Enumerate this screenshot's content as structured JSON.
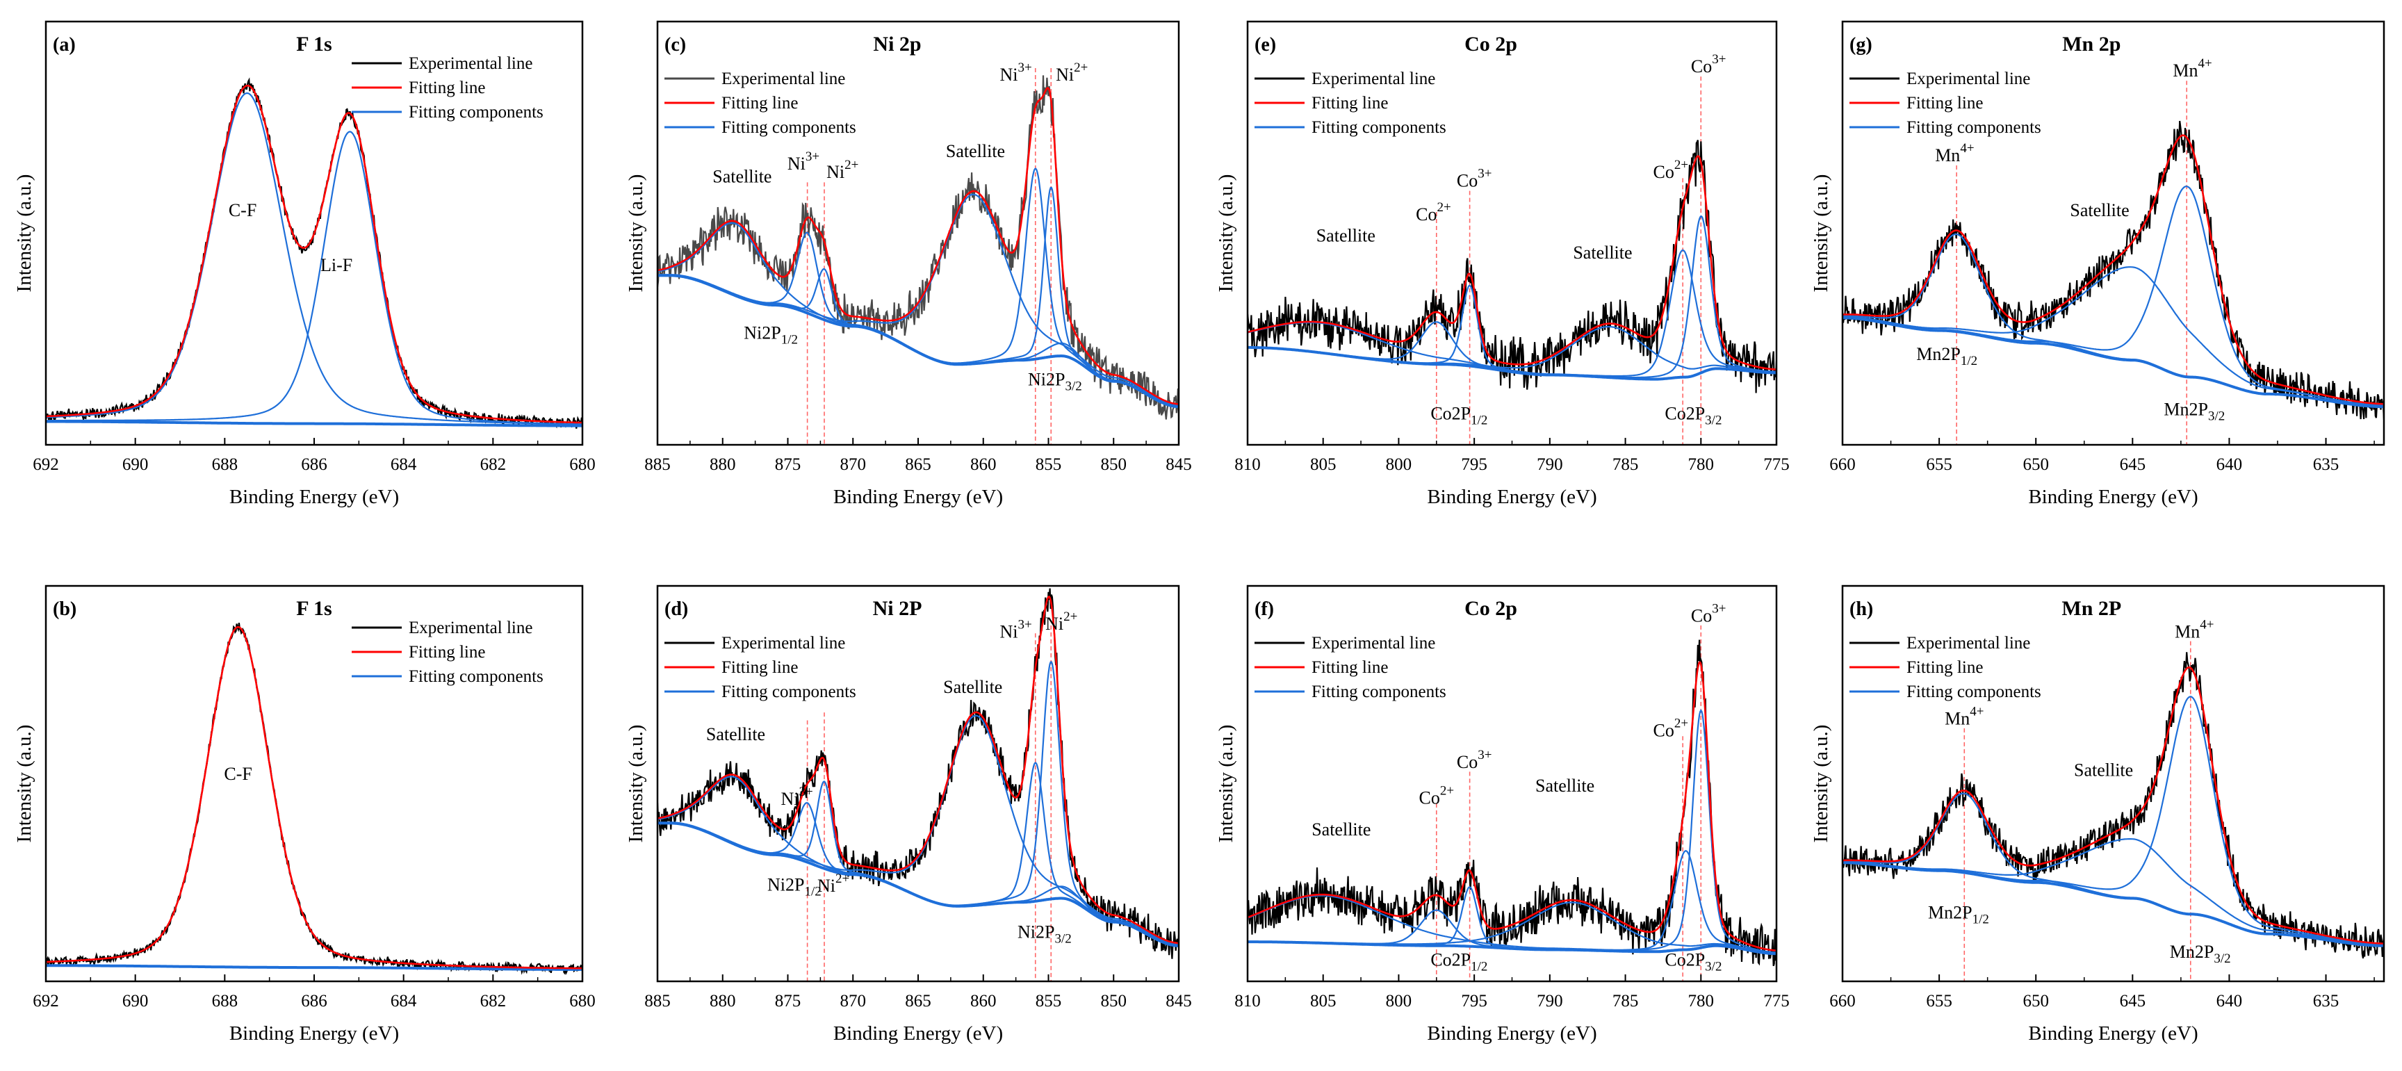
{
  "legend_labels": [
    "Experimental line",
    "Fitting line",
    "Fitting components"
  ],
  "colors": {
    "experimental": "#000000",
    "experimental_gray": "#4a4a4a",
    "fitting": "#ff0000",
    "components": "#1e6fd9",
    "guide": "#ff6666"
  },
  "chart_data": [
    {
      "id": "a",
      "type": "line",
      "panel_label": "(a)",
      "title": "F 1s",
      "xlabel": "Binding Energy (eV)",
      "ylabel": "Intensity (a.u.)",
      "xlim": [
        692,
        680
      ],
      "xticks": [
        692,
        690,
        688,
        686,
        684,
        682,
        680
      ],
      "legend": "top-right",
      "exp_color": "experimental",
      "noise": 0.012,
      "seed": 3,
      "background": [
        [
          692,
          0.055
        ],
        [
          686,
          0.05
        ],
        [
          680,
          0.045
        ]
      ],
      "components": [
        {
          "name": "C-F",
          "center": 687.5,
          "height": 0.78,
          "fwhm": 1.9
        },
        {
          "name": "Li-F",
          "center": 685.2,
          "height": 0.69,
          "fwhm": 1.4
        }
      ],
      "guides": [],
      "annotations": [
        {
          "text": "C-F",
          "x": 687.6,
          "y": 0.55
        },
        {
          "text": "Li-F",
          "x": 685.5,
          "y": 0.42
        }
      ]
    },
    {
      "id": "b",
      "type": "line",
      "panel_label": "(b)",
      "title": "F 1s",
      "xlabel": "Binding Energy (eV)",
      "ylabel": "Intensity (a.u.)",
      "xlim": [
        692,
        680
      ],
      "xticks": [
        692,
        690,
        688,
        686,
        684,
        682,
        680
      ],
      "legend": "top-right",
      "exp_color": "experimental",
      "noise": 0.01,
      "seed": 5,
      "background": [
        [
          692,
          0.04
        ],
        [
          686,
          0.035
        ],
        [
          680,
          0.03
        ]
      ],
      "components": [
        {
          "name": "C-F",
          "center": 687.7,
          "height": 0.86,
          "fwhm": 1.65
        }
      ],
      "guides": [],
      "annotations": [
        {
          "text": "C-F",
          "x": 687.7,
          "y": 0.52
        }
      ]
    },
    {
      "id": "c",
      "type": "line",
      "panel_label": "(c)",
      "title": "Ni 2p",
      "xlabel": "Binding Energy (eV)",
      "ylabel": "Intensity (a.u.)",
      "xlim": [
        885,
        845
      ],
      "xticks": [
        885,
        880,
        875,
        870,
        865,
        860,
        855,
        850,
        845
      ],
      "legend": "upper-left",
      "exp_color": "experimental_gray",
      "noise": 0.04,
      "seed": 7,
      "background": [
        [
          884,
          0.4
        ],
        [
          876,
          0.33
        ],
        [
          870,
          0.28
        ],
        [
          862,
          0.19
        ],
        [
          857,
          0.2
        ],
        [
          854,
          0.21
        ],
        [
          850,
          0.15
        ],
        [
          845,
          0.09
        ]
      ],
      "components": [
        {
          "name": "Satellite",
          "center": 879,
          "height": 0.17,
          "fwhm": 5
        },
        {
          "name": "Ni3+",
          "center": 873.5,
          "height": 0.19,
          "fwhm": 1.8
        },
        {
          "name": "Ni2+",
          "center": 872.2,
          "height": 0.12,
          "fwhm": 1.4
        },
        {
          "name": "Satellite",
          "center": 860.8,
          "height": 0.4,
          "fwhm": 6
        },
        {
          "name": "Ni3+",
          "center": 856,
          "height": 0.45,
          "fwhm": 1.8
        },
        {
          "name": "Ni2+",
          "center": 854.8,
          "height": 0.4,
          "fwhm": 1.3
        },
        {
          "name": "shoulder",
          "center": 854,
          "height": 0.03,
          "fwhm": 3
        }
      ],
      "guides": [
        {
          "x": 873.5,
          "top": 0.62
        },
        {
          "x": 872.2,
          "top": 0.62
        },
        {
          "x": 856,
          "top": 0.89
        },
        {
          "x": 854.8,
          "top": 0.89
        }
      ],
      "annotations": [
        {
          "text": "Satellite",
          "x": 878.5,
          "y": 0.63
        },
        {
          "text": "Ni",
          "sup": "3+",
          "x": 873.8,
          "y": 0.66
        },
        {
          "text": "Ni",
          "sup": "2+",
          "x": 870.8,
          "y": 0.64
        },
        {
          "text": "Satellite",
          "x": 860.6,
          "y": 0.69
        },
        {
          "text": "Ni",
          "sup": "3+",
          "x": 857.5,
          "y": 0.87
        },
        {
          "text": "Ni",
          "sup": "2+",
          "x": 853.2,
          "y": 0.87
        },
        {
          "text": "Ni2P",
          "sub": "1/2",
          "x": 876.3,
          "y": 0.26
        },
        {
          "text": "Ni2P",
          "sub": "3/2",
          "x": 854.5,
          "y": 0.15
        }
      ]
    },
    {
      "id": "d",
      "type": "line",
      "panel_label": "(d)",
      "title": "Ni 2P",
      "xlabel": "Binding Energy (eV)",
      "ylabel": "Intensity (a.u.)",
      "xlim": [
        885,
        845
      ],
      "xticks": [
        885,
        880,
        875,
        870,
        865,
        860,
        855,
        850,
        845
      ],
      "legend": "upper-left",
      "exp_color": "experimental",
      "noise": 0.035,
      "seed": 11,
      "background": [
        [
          884,
          0.4
        ],
        [
          876,
          0.32
        ],
        [
          870,
          0.27
        ],
        [
          862,
          0.19
        ],
        [
          857,
          0.2
        ],
        [
          854,
          0.21
        ],
        [
          850,
          0.15
        ],
        [
          845,
          0.09
        ]
      ],
      "components": [
        {
          "name": "Satellite",
          "center": 879,
          "height": 0.17,
          "fwhm": 5
        },
        {
          "name": "Ni3+",
          "center": 873.5,
          "height": 0.15,
          "fwhm": 1.8
        },
        {
          "name": "Ni2+",
          "center": 872.2,
          "height": 0.22,
          "fwhm": 1.4
        },
        {
          "name": "Satellite",
          "center": 860.6,
          "height": 0.48,
          "fwhm": 5.5
        },
        {
          "name": "Ni3+",
          "center": 856,
          "height": 0.35,
          "fwhm": 1.6
        },
        {
          "name": "Ni2+",
          "center": 854.8,
          "height": 0.6,
          "fwhm": 1.6
        },
        {
          "name": "shoulder",
          "center": 854,
          "height": 0.03,
          "fwhm": 3
        }
      ],
      "guides": [
        {
          "x": 873.5,
          "top": 0.66
        },
        {
          "x": 872.2,
          "top": 0.68
        },
        {
          "x": 856,
          "top": 0.88
        },
        {
          "x": 854.8,
          "top": 0.9
        }
      ],
      "annotations": [
        {
          "text": "Satellite",
          "x": 879,
          "y": 0.62
        },
        {
          "text": "Ni",
          "sup": "3+",
          "x": 874.3,
          "y": 0.68
        },
        {
          "text": "Ni",
          "sup": "2+",
          "x": 871.5,
          "y": 0.7
        },
        {
          "text": "Satellite",
          "x": 860.8,
          "y": 0.74
        },
        {
          "text": "Ni",
          "sup": "3+",
          "x": 857.5,
          "y": 0.88
        },
        {
          "text": "Ni",
          "sup": "2+",
          "x": 854,
          "y": 0.9
        },
        {
          "text": "Ni2P",
          "sub": "1/2",
          "x": 874.5,
          "y": 0.24
        },
        {
          "text": "Ni2P",
          "sub": "3/2",
          "x": 855.3,
          "y": 0.12
        }
      ]
    },
    {
      "id": "e",
      "type": "line",
      "panel_label": "(e)",
      "title": "Co 2p",
      "xlabel": "Binding Energy (eV)",
      "ylabel": "Intensity (a.u.)",
      "xlim": [
        810,
        775
      ],
      "xticks": [
        810,
        805,
        800,
        795,
        790,
        785,
        780,
        775
      ],
      "legend": "upper-left",
      "exp_color": "experimental",
      "noise": 0.05,
      "seed": 13,
      "background": [
        [
          810,
          0.23
        ],
        [
          797,
          0.19
        ],
        [
          790,
          0.165
        ],
        [
          783,
          0.155
        ],
        [
          781,
          0.16
        ],
        [
          779,
          0.18
        ],
        [
          775,
          0.17
        ]
      ],
      "components": [
        {
          "name": "Satellite",
          "center": 805,
          "height": 0.07,
          "fwhm": 10
        },
        {
          "name": "Co2+",
          "center": 797.5,
          "height": 0.1,
          "fwhm": 2.5
        },
        {
          "name": "Co3+",
          "center": 795.3,
          "height": 0.19,
          "fwhm": 1.2
        },
        {
          "name": "Satellite",
          "center": 786,
          "height": 0.12,
          "fwhm": 6
        },
        {
          "name": "Co2+",
          "center": 781.2,
          "height": 0.3,
          "fwhm": 2
        },
        {
          "name": "Co3+",
          "center": 780,
          "height": 0.37,
          "fwhm": 1.5
        }
      ],
      "guides": [
        {
          "x": 797.5,
          "top": 0.55
        },
        {
          "x": 795.3,
          "top": 0.6
        },
        {
          "x": 781.2,
          "top": 0.63
        },
        {
          "x": 780,
          "top": 0.87
        }
      ],
      "annotations": [
        {
          "text": "Satellite",
          "x": 803.5,
          "y": 0.49
        },
        {
          "text": "Co",
          "sup": "2+",
          "x": 797.7,
          "y": 0.54
        },
        {
          "text": "Co",
          "sup": "3+",
          "x": 795,
          "y": 0.62
        },
        {
          "text": "Satellite",
          "x": 786.5,
          "y": 0.45
        },
        {
          "text": "Co",
          "sup": "2+",
          "x": 782,
          "y": 0.64
        },
        {
          "text": "Co",
          "sup": "3+",
          "x": 779.5,
          "y": 0.89
        },
        {
          "text": "Co2P",
          "sub": "1/2",
          "x": 796,
          "y": 0.07
        },
        {
          "text": "Co2P",
          "sub": "3/2",
          "x": 780.5,
          "y": 0.07
        }
      ]
    },
    {
      "id": "f",
      "type": "line",
      "panel_label": "(f)",
      "title": "Co 2p",
      "xlabel": "Binding Energy (eV)",
      "ylabel": "Intensity (a.u.)",
      "xlim": [
        810,
        775
      ],
      "xticks": [
        810,
        805,
        800,
        795,
        790,
        785,
        780,
        775
      ],
      "legend": "upper-left",
      "exp_color": "experimental",
      "noise": 0.05,
      "seed": 17,
      "background": [
        [
          810,
          0.1
        ],
        [
          797,
          0.09
        ],
        [
          790,
          0.08
        ],
        [
          783,
          0.075
        ],
        [
          781,
          0.08
        ],
        [
          779,
          0.09
        ],
        [
          775,
          0.07
        ]
      ],
      "components": [
        {
          "name": "Satellite",
          "center": 805,
          "height": 0.12,
          "fwhm": 10
        },
        {
          "name": "Co2+",
          "center": 797.5,
          "height": 0.09,
          "fwhm": 2.5
        },
        {
          "name": "Co3+",
          "center": 795.3,
          "height": 0.15,
          "fwhm": 1.2
        },
        {
          "name": "Satellite",
          "center": 788.5,
          "height": 0.12,
          "fwhm": 7
        },
        {
          "name": "Co2+",
          "center": 781,
          "height": 0.25,
          "fwhm": 1.8
        },
        {
          "name": "Co3+",
          "center": 780,
          "height": 0.6,
          "fwhm": 1.3
        }
      ],
      "guides": [
        {
          "x": 797.5,
          "top": 0.45
        },
        {
          "x": 795.3,
          "top": 0.53
        },
        {
          "x": 781.2,
          "top": 0.62
        },
        {
          "x": 780,
          "top": 0.9
        }
      ],
      "annotations": [
        {
          "text": "Satellite",
          "x": 803.8,
          "y": 0.38
        },
        {
          "text": "Co",
          "sup": "2+",
          "x": 797.5,
          "y": 0.46
        },
        {
          "text": "Co",
          "sup": "3+",
          "x": 795,
          "y": 0.55
        },
        {
          "text": "Satellite",
          "x": 789,
          "y": 0.49
        },
        {
          "text": "Co",
          "sup": "2+",
          "x": 782,
          "y": 0.63
        },
        {
          "text": "Co",
          "sup": "3+",
          "x": 779.5,
          "y": 0.92
        },
        {
          "text": "Co2P",
          "sub": "1/2",
          "x": 796,
          "y": 0.05
        },
        {
          "text": "Co2P",
          "sub": "3/2",
          "x": 780.5,
          "y": 0.05
        }
      ]
    },
    {
      "id": "g",
      "type": "line",
      "panel_label": "(g)",
      "title": "Mn 2p",
      "xlabel": "Binding Energy (eV)",
      "ylabel": "Intensity (a.u.)",
      "xlim": [
        660,
        632
      ],
      "xticks": [
        660,
        655,
        650,
        645,
        640,
        635
      ],
      "legend": "upper-left",
      "exp_color": "experimental",
      "noise": 0.035,
      "seed": 19,
      "background": [
        [
          660,
          0.3
        ],
        [
          655,
          0.27
        ],
        [
          650,
          0.24
        ],
        [
          645,
          0.2
        ],
        [
          642,
          0.16
        ],
        [
          638,
          0.12
        ],
        [
          632,
          0.09
        ]
      ],
      "components": [
        {
          "name": "Mn4+",
          "center": 654.1,
          "height": 0.23,
          "fwhm": 3
        },
        {
          "name": "Satellite",
          "center": 645.1,
          "height": 0.22,
          "fwhm": 6
        },
        {
          "name": "Mn4+",
          "center": 642.2,
          "height": 0.45,
          "fwhm": 3
        }
      ],
      "guides": [
        {
          "x": 654.1,
          "top": 0.66
        },
        {
          "x": 642.2,
          "top": 0.86
        }
      ],
      "annotations": [
        {
          "text": "Mn",
          "sup": "4+",
          "x": 654.2,
          "y": 0.68
        },
        {
          "text": "Satellite",
          "x": 646.7,
          "y": 0.55
        },
        {
          "text": "Mn",
          "sup": "4+",
          "x": 641.9,
          "y": 0.88
        },
        {
          "text": "Mn2P",
          "sub": "1/2",
          "x": 654.6,
          "y": 0.21
        },
        {
          "text": "Mn2P",
          "sub": "3/2",
          "x": 641.8,
          "y": 0.08
        }
      ]
    },
    {
      "id": "h",
      "type": "line",
      "panel_label": "(h)",
      "title": "Mn 2P",
      "xlabel": "Binding Energy (eV)",
      "ylabel": "Intensity (a.u.)",
      "xlim": [
        660,
        632
      ],
      "xticks": [
        660,
        655,
        650,
        645,
        640,
        635
      ],
      "legend": "upper-left",
      "exp_color": "experimental",
      "noise": 0.035,
      "seed": 23,
      "background": [
        [
          660,
          0.3
        ],
        [
          655,
          0.28
        ],
        [
          650,
          0.25
        ],
        [
          645,
          0.21
        ],
        [
          642,
          0.17
        ],
        [
          638,
          0.12
        ],
        [
          632,
          0.09
        ]
      ],
      "components": [
        {
          "name": "Mn4+",
          "center": 653.7,
          "height": 0.2,
          "fwhm": 3
        },
        {
          "name": "Satellite",
          "center": 645.1,
          "height": 0.15,
          "fwhm": 6
        },
        {
          "name": "Mn4+",
          "center": 642,
          "height": 0.55,
          "fwhm": 2.8
        }
      ],
      "guides": [
        {
          "x": 653.7,
          "top": 0.64
        },
        {
          "x": 642,
          "top": 0.86
        }
      ],
      "annotations": [
        {
          "text": "Mn",
          "sup": "4+",
          "x": 653.7,
          "y": 0.66
        },
        {
          "text": "Satellite",
          "x": 646.5,
          "y": 0.53
        },
        {
          "text": "Mn",
          "sup": "4+",
          "x": 641.8,
          "y": 0.88
        },
        {
          "text": "Mn2P",
          "sub": "1/2",
          "x": 654,
          "y": 0.17
        },
        {
          "text": "Mn2P",
          "sub": "3/2",
          "x": 641.5,
          "y": 0.07
        }
      ]
    }
  ]
}
